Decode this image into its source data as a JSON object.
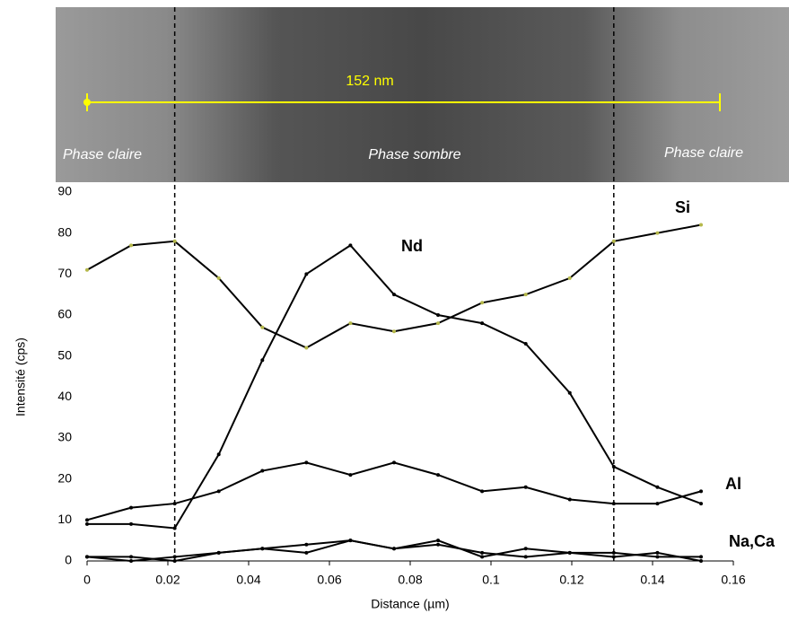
{
  "chart_data": {
    "type": "line",
    "image_labels": {
      "scale": "152 nm",
      "left": "Phase claire",
      "middle": "Phase sombre",
      "right": "Phase claire"
    },
    "x_label": "Distance (µm)",
    "y_label": "Intensité (cps)",
    "x": [
      0,
      0.0109,
      0.0217,
      0.0326,
      0.0434,
      0.0543,
      0.0652,
      0.076,
      0.0869,
      0.0978,
      0.1086,
      0.1195,
      0.1304,
      0.1412,
      0.152
    ],
    "series": [
      {
        "name": "Si",
        "color": "#000000",
        "marker_color": "#b5b84a",
        "values": [
          71,
          77,
          78,
          69,
          57,
          52,
          58,
          56,
          58,
          63,
          65,
          69,
          78,
          80,
          82
        ]
      },
      {
        "name": "Nd",
        "color": "#000000",
        "marker_color": "#000000",
        "values": [
          9,
          9,
          8,
          26,
          49,
          70,
          77,
          65,
          60,
          58,
          53,
          41,
          23,
          18,
          14
        ]
      },
      {
        "name": "Al",
        "color": "#000000",
        "marker_color": "#000000",
        "values": [
          10,
          13,
          14,
          17,
          22,
          24,
          21,
          24,
          21,
          17,
          18,
          15,
          14,
          14,
          17
        ]
      },
      {
        "name": "Na,Ca",
        "color": "#000000",
        "marker_color": "#000000",
        "values": [
          1,
          1,
          0,
          2,
          3,
          4,
          5,
          3,
          4,
          2,
          1,
          2,
          2,
          1,
          1
        ]
      },
      {
        "color": "#000000",
        "marker_color": "#000000",
        "values": [
          1,
          0,
          1,
          2,
          3,
          2,
          5,
          3,
          5,
          1,
          3,
          2,
          1,
          2,
          0
        ]
      }
    ],
    "boundaries": [
      0.0217,
      0.1304
    ],
    "xlim": [
      0,
      0.16
    ],
    "xticks": [
      0,
      0.02,
      0.04,
      0.06,
      0.08,
      0.1,
      0.12,
      0.14,
      0.16
    ],
    "ylim": [
      0,
      90
    ],
    "yticks": [
      0,
      10,
      20,
      30,
      40,
      50,
      60,
      70,
      80,
      90
    ]
  }
}
